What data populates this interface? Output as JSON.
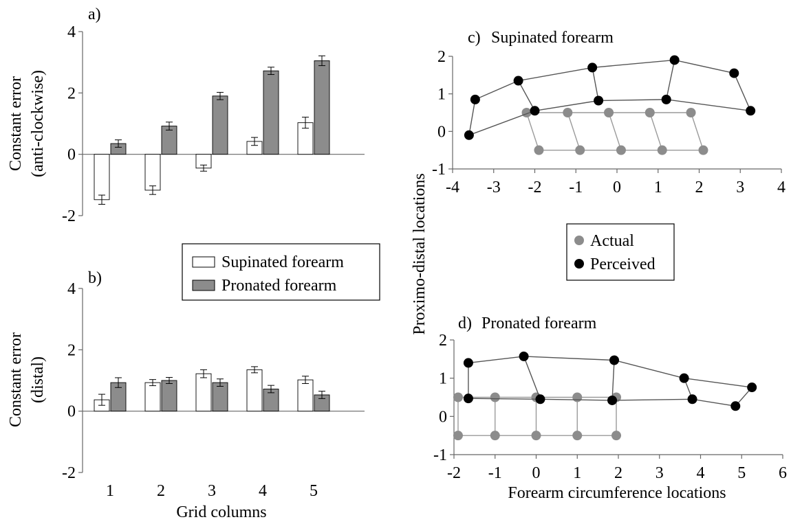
{
  "colors": {
    "supinated_bar": "#ffffff",
    "pronated_bar": "#8c8c8c",
    "actual_point": "#8c8c8c",
    "perceived_point": "#000000",
    "actual_line": "#9a9a9a",
    "perceived_line": "#555555"
  },
  "shared_labels": {
    "bar_xlabel": "Grid columns",
    "scatter_ylabel": "Proximo-distal locations",
    "scatter_xlabel": "Forearm circumference locations"
  },
  "legends": {
    "bar": [
      "Supinated forearm",
      "Pronated forearm"
    ],
    "scatter": [
      "Actual",
      "Perceived"
    ]
  },
  "chart_data": [
    {
      "panel": "a)",
      "type": "bar",
      "title": "",
      "ylabel_lines": [
        "Constant error",
        "(anti-clockwise)"
      ],
      "xlabel": "",
      "categories": [
        "1",
        "2",
        "3",
        "4",
        "5"
      ],
      "ylim": [
        -2,
        4
      ],
      "yticks": [
        "4",
        "2",
        "0",
        "-2"
      ],
      "series": [
        {
          "name": "Supinated forearm",
          "values": [
            -1.48,
            -1.17,
            -0.45,
            0.42,
            1.03
          ],
          "errors": [
            0.15,
            0.14,
            0.1,
            0.13,
            0.18
          ]
        },
        {
          "name": "Pronated forearm",
          "values": [
            0.35,
            0.92,
            1.9,
            2.72,
            3.05
          ],
          "errors": [
            0.12,
            0.13,
            0.12,
            0.12,
            0.16
          ]
        }
      ]
    },
    {
      "panel": "b)",
      "type": "bar",
      "title": "",
      "ylabel_lines": [
        "Constant error",
        "(distal)"
      ],
      "xlabel": "Grid columns",
      "categories": [
        "1",
        "2",
        "3",
        "4",
        "5"
      ],
      "ylim": [
        -2,
        4
      ],
      "yticks": [
        "4",
        "2",
        "0",
        "-2"
      ],
      "series": [
        {
          "name": "Supinated forearm",
          "values": [
            0.37,
            0.93,
            1.22,
            1.35,
            1.02
          ],
          "errors": [
            0.18,
            0.1,
            0.13,
            0.1,
            0.12
          ]
        },
        {
          "name": "Pronated forearm",
          "values": [
            0.93,
            1.0,
            0.93,
            0.72,
            0.53
          ],
          "errors": [
            0.16,
            0.1,
            0.12,
            0.12,
            0.12
          ]
        }
      ]
    },
    {
      "panel": "c)",
      "type": "scatter",
      "title": "Supinated forearm",
      "xlim": [
        -4,
        4
      ],
      "ylim": [
        -1,
        2
      ],
      "xticks": [
        "-4",
        "-3",
        "-2",
        "-1",
        "0",
        "1",
        "2",
        "3",
        "4"
      ],
      "yticks": [
        "2",
        "1",
        "0",
        "-1"
      ],
      "series": [
        {
          "name": "Actual",
          "rows": [
            [
              [
                -2.2,
                0.5
              ],
              [
                -1.2,
                0.5
              ],
              [
                -0.2,
                0.5
              ],
              [
                0.8,
                0.5
              ],
              [
                1.8,
                0.5
              ]
            ],
            [
              [
                -1.9,
                -0.5
              ],
              [
                -0.9,
                -0.5
              ],
              [
                0.1,
                -0.5
              ],
              [
                1.1,
                -0.5
              ],
              [
                2.1,
                -0.5
              ]
            ]
          ]
        },
        {
          "name": "Perceived",
          "rows": [
            [
              [
                -3.45,
                0.85
              ],
              [
                -2.4,
                1.35
              ],
              [
                -0.6,
                1.7
              ],
              [
                1.4,
                1.9
              ],
              [
                2.85,
                1.55
              ]
            ],
            [
              [
                -3.6,
                -0.1
              ],
              [
                -2.0,
                0.55
              ],
              [
                -0.45,
                0.82
              ],
              [
                1.2,
                0.85
              ],
              [
                3.25,
                0.55
              ]
            ]
          ]
        }
      ]
    },
    {
      "panel": "d)",
      "type": "scatter",
      "title": "Pronated forearm",
      "xlim": [
        -2,
        6
      ],
      "ylim": [
        -1,
        2
      ],
      "xticks": [
        "-2",
        "-1",
        "0",
        "1",
        "2",
        "3",
        "4",
        "5",
        "6"
      ],
      "yticks": [
        "2",
        "1",
        "0",
        "-1"
      ],
      "series": [
        {
          "name": "Actual",
          "rows": [
            [
              [
                -1.9,
                0.5
              ],
              [
                -1.0,
                0.5
              ],
              [
                0.0,
                0.5
              ],
              [
                1.0,
                0.5
              ],
              [
                1.95,
                0.5
              ]
            ],
            [
              [
                -1.9,
                -0.5
              ],
              [
                -1.0,
                -0.5
              ],
              [
                0.0,
                -0.5
              ],
              [
                1.0,
                -0.5
              ],
              [
                1.95,
                -0.5
              ]
            ]
          ]
        },
        {
          "name": "Perceived",
          "rows": [
            [
              [
                -1.65,
                1.4
              ],
              [
                -0.3,
                1.57
              ],
              [
                1.9,
                1.47
              ],
              [
                3.6,
                1.0
              ],
              [
                5.25,
                0.76
              ]
            ],
            [
              [
                -1.65,
                0.47
              ],
              [
                0.1,
                0.45
              ],
              [
                1.85,
                0.42
              ],
              [
                3.8,
                0.45
              ],
              [
                4.85,
                0.27
              ]
            ]
          ]
        }
      ]
    }
  ]
}
